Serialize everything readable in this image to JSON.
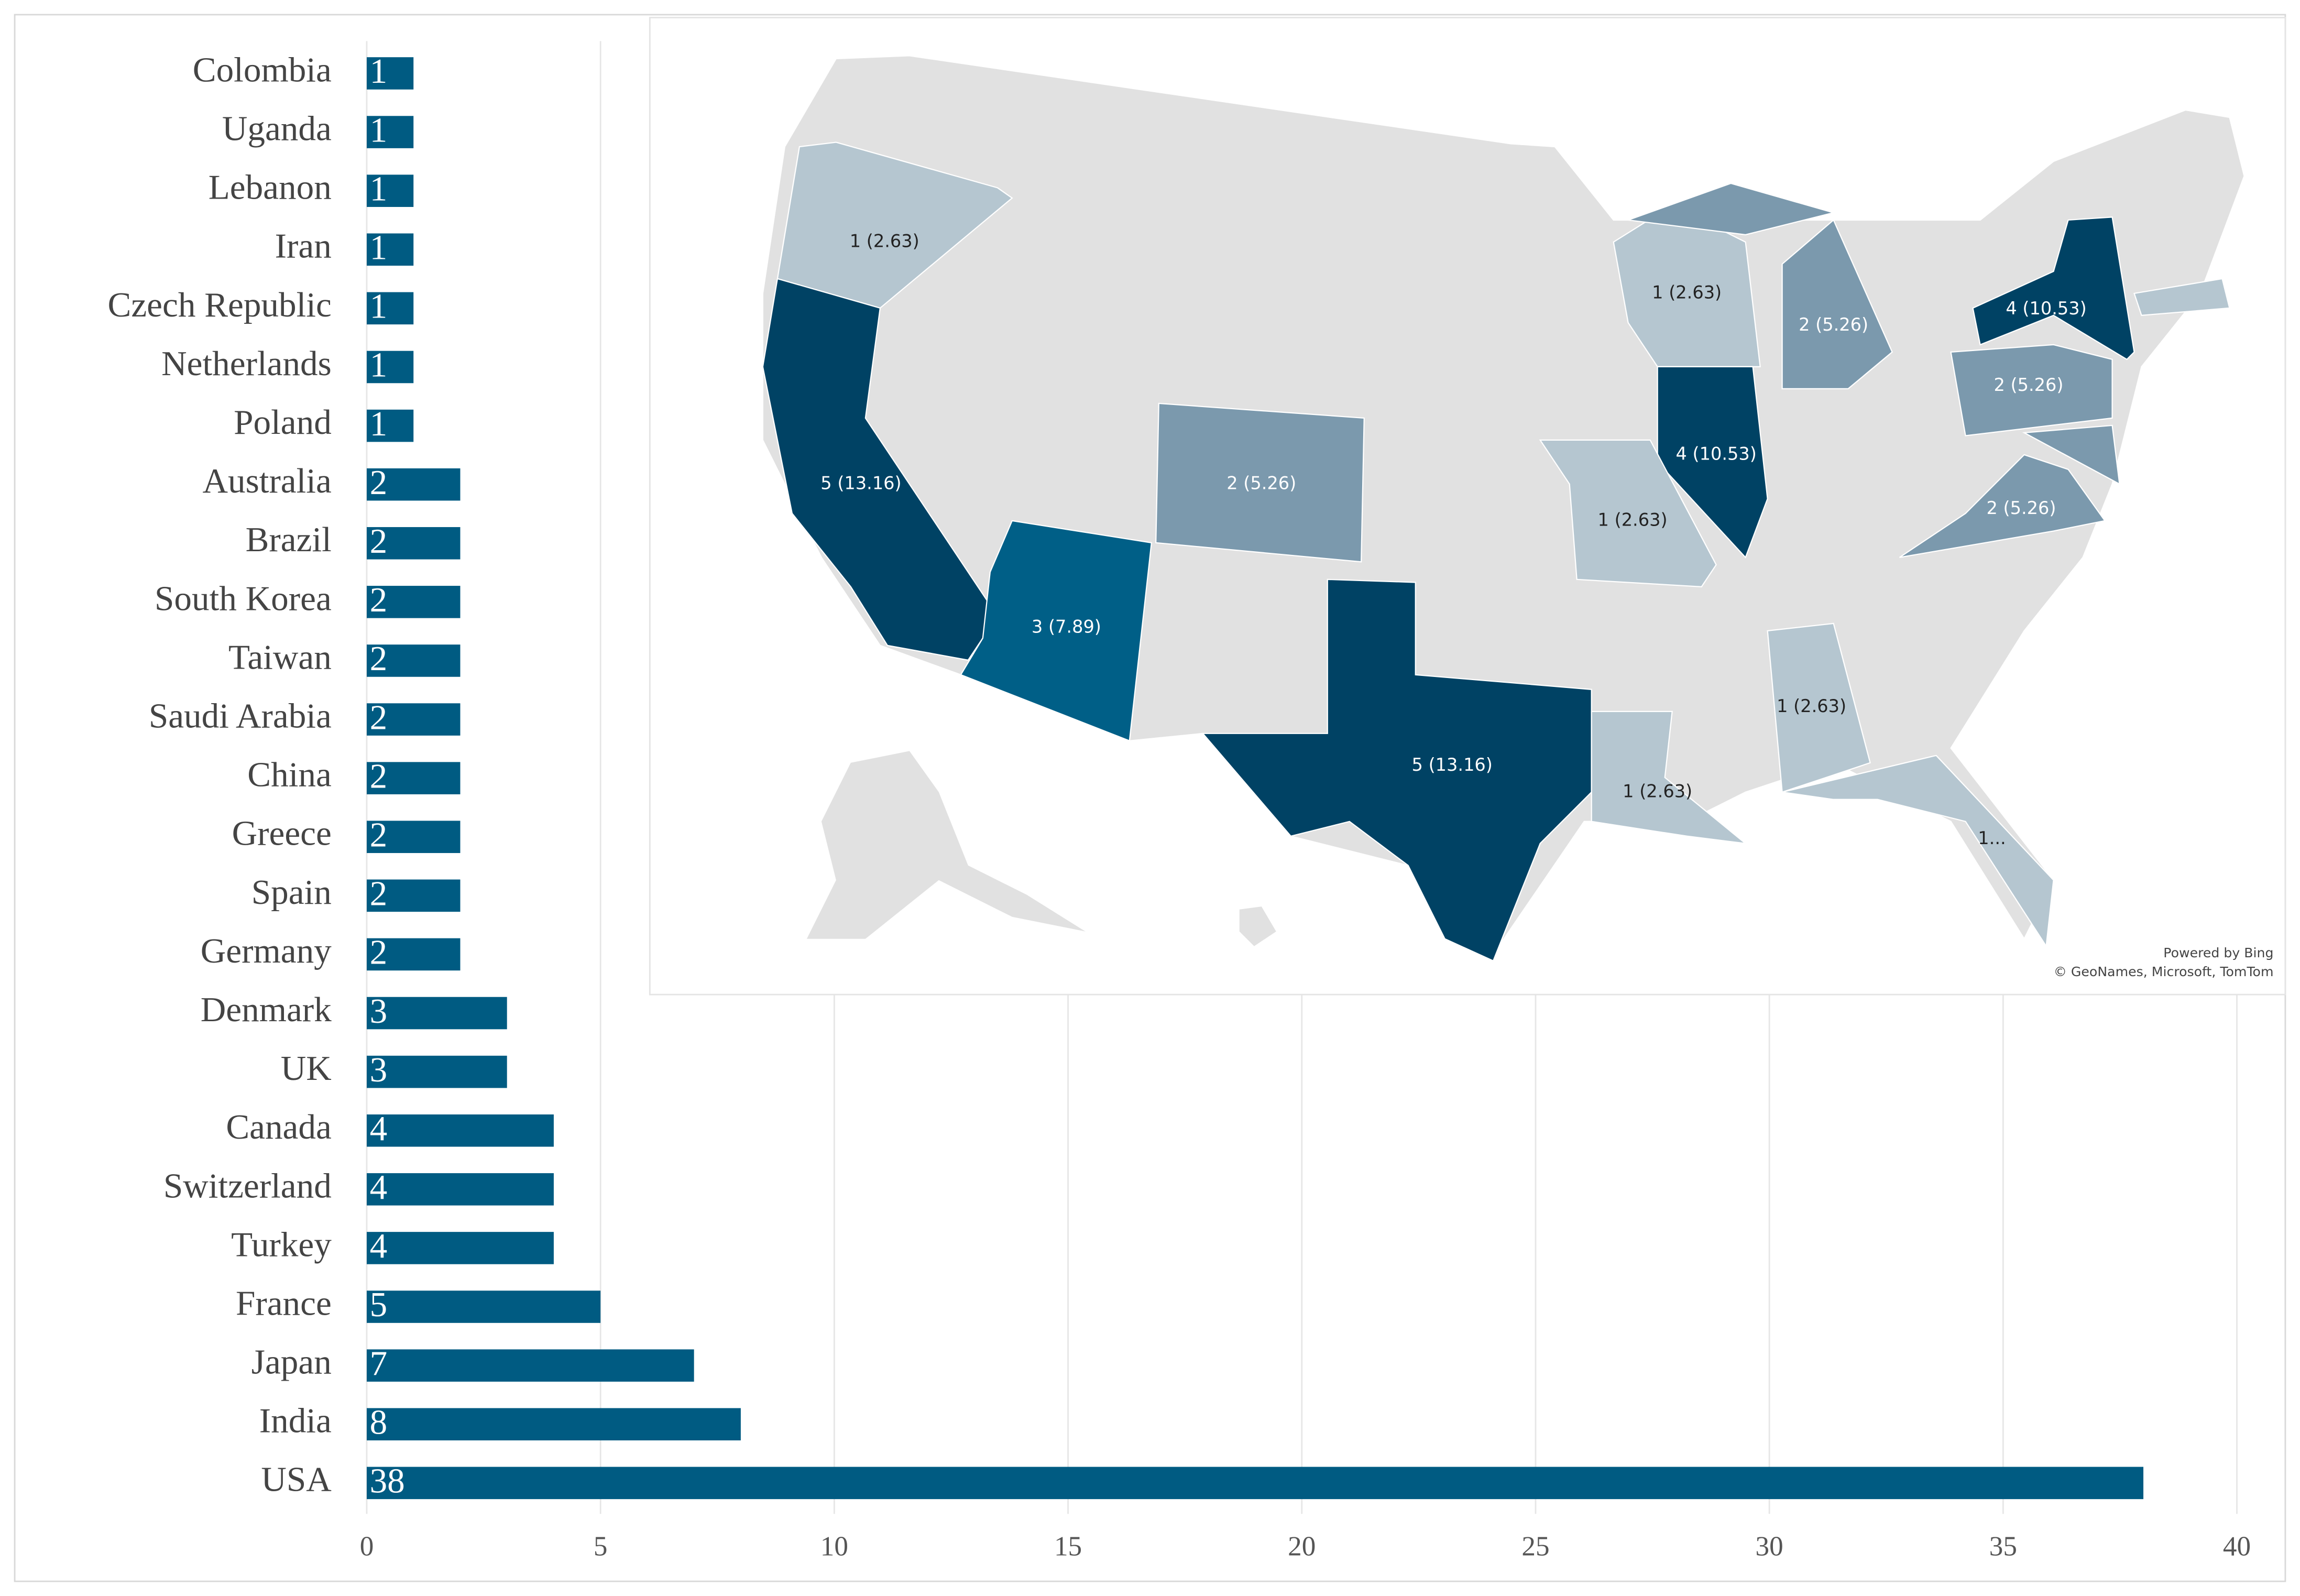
{
  "chart_data": {
    "type": "bar",
    "orientation": "horizontal",
    "categories": [
      "Colombia",
      "Uganda",
      "Lebanon",
      "Iran",
      "Czech Republic",
      "Netherlands",
      "Poland",
      "Australia",
      "Brazil",
      "South Korea",
      "Taiwan",
      "Saudi Arabia",
      "China",
      "Greece",
      "Spain",
      "Germany",
      "Denmark",
      "UK",
      "Canada",
      "Switzerland",
      "Turkey",
      "France",
      "Japan",
      "India",
      "USA"
    ],
    "values": [
      1,
      1,
      1,
      1,
      1,
      1,
      1,
      2,
      2,
      2,
      2,
      2,
      2,
      2,
      2,
      2,
      3,
      3,
      4,
      4,
      4,
      5,
      7,
      8,
      38
    ],
    "color": "#005b82",
    "xlim": [
      0,
      40
    ],
    "xticks": [
      0,
      5,
      10,
      15,
      20,
      25,
      30,
      35,
      40
    ],
    "grid": true
  },
  "map": {
    "background": "#e1e1e1",
    "regions": [
      {
        "label": "1 (2.63)",
        "color": "#b5c6d0"
      },
      {
        "label": "5 (13.16)",
        "color": "#004264"
      },
      {
        "label": "3 (7.89)",
        "color": "#005f87"
      },
      {
        "label": "2 (5.26)",
        "color": "#7b99ad"
      },
      {
        "label": "5 (13.16)",
        "color": "#004264"
      },
      {
        "label": "1 (2.63)",
        "color": "#b5c6d0"
      },
      {
        "label": "2 (5.26)",
        "color": "#7b99ad"
      },
      {
        "label": "4 (10.53)",
        "color": "#004264"
      },
      {
        "label": "1 (2.63)",
        "color": "#b5c6d0"
      },
      {
        "label": "4 (10.53)",
        "color": "#004264"
      },
      {
        "label": "2 (5.26)",
        "color": "#7b99ad"
      },
      {
        "label": "2 (5.26)",
        "color": "#7b99ad"
      },
      {
        "color": "#b5c6d0"
      },
      {
        "color": "#7b99ad"
      },
      {
        "label": "1 (2.63)",
        "color": "#b5c6d0"
      },
      {
        "label": "1 (2.63)",
        "color": "#b5c6d0"
      },
      {
        "label": "1...",
        "color": "#b5c6d0"
      }
    ],
    "attribution": [
      "Powered by Bing",
      "© GeoNames, Microsoft, TomTom"
    ]
  }
}
